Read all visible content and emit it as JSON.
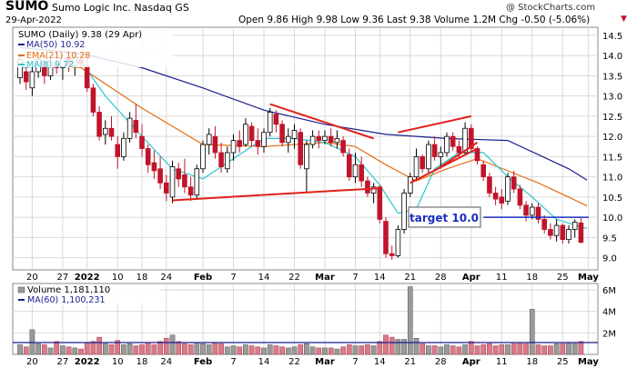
{
  "header": {
    "symbol": "SUMO",
    "company": "Sumo Logic Inc.  Nasdaq GS",
    "date": "29-Apr-2022",
    "copyright": "@ StockCharts.com",
    "quote": "Open 9.86  High 9.98  Low 9.36  Last 9.38  Volume 1.2M  Chg -0.50 (-5.06%)",
    "quote_chg_arrow": "▼"
  },
  "legend": {
    "price": "SUMO (Daily) 9.38 (29 Apr)",
    "ma50": "MA(50) 10.92",
    "ema21": "EMA(21) 10.28",
    "ma8": "MA(8) 9.72",
    "volume": "Volume 1,181,110",
    "ma60": "MA(60) 1,100,231"
  },
  "annotation": "target 10.0",
  "colors": {
    "up": "#000000",
    "down": "#c0142b",
    "ma50": "#1a1f8f",
    "ema21": "#e56e14",
    "ma8": "#2bc7cf",
    "trend": "#e0201a",
    "target": "#1a2fbf",
    "vol_up": "#9a9a9a",
    "vol_down": "#d97a86",
    "vol_ma": "#1a1f8f",
    "grid": "#d9d9d9"
  },
  "chart_data": [
    {
      "type": "candlestick",
      "ylim": [
        8.7,
        14.7
      ],
      "y_ticks": [
        "9.0",
        "9.5",
        "10.0",
        "10.5",
        "11.0",
        "11.5",
        "12.0",
        "12.5",
        "13.0",
        "13.5",
        "14.0",
        "14.5"
      ],
      "x_ticks": [
        "20",
        "27",
        "2022",
        "10",
        "18",
        "24",
        "Feb",
        "7",
        "14",
        "22",
        "Mar",
        "7",
        "14",
        "21",
        "28",
        "Apr",
        "11",
        "18",
        "25",
        "May"
      ],
      "candles": [
        {
          "d": "2021-12-16",
          "o": 13.45,
          "h": 14.05,
          "l": 13.3,
          "c": 13.9
        },
        {
          "d": "2021-12-17",
          "o": 13.6,
          "h": 13.75,
          "l": 13.15,
          "c": 13.35
        },
        {
          "d": "2021-12-20",
          "o": 13.2,
          "h": 13.75,
          "l": 13.0,
          "c": 13.6
        },
        {
          "d": "2021-12-21",
          "o": 13.6,
          "h": 14.0,
          "l": 13.45,
          "c": 13.9
        },
        {
          "d": "2021-12-22",
          "o": 13.85,
          "h": 14.0,
          "l": 13.3,
          "c": 13.5
        },
        {
          "d": "2021-12-23",
          "o": 13.5,
          "h": 13.95,
          "l": 13.4,
          "c": 13.85
        },
        {
          "d": "2021-12-27",
          "o": 13.8,
          "h": 14.1,
          "l": 13.55,
          "c": 13.7
        },
        {
          "d": "2021-12-28",
          "o": 13.7,
          "h": 14.05,
          "l": 13.4,
          "c": 13.95
        },
        {
          "d": "2021-12-29",
          "o": 13.95,
          "h": 14.0,
          "l": 13.6,
          "c": 13.75
        },
        {
          "d": "2021-12-30",
          "o": 13.75,
          "h": 14.05,
          "l": 13.5,
          "c": 13.95
        },
        {
          "d": "2021-12-31",
          "o": 13.9,
          "h": 14.05,
          "l": 13.7,
          "c": 13.8
        },
        {
          "d": "2022-01-03",
          "o": 13.75,
          "h": 14.0,
          "l": 13.1,
          "c": 13.2
        },
        {
          "d": "2022-01-04",
          "o": 13.2,
          "h": 13.3,
          "l": 12.5,
          "c": 12.6
        },
        {
          "d": "2022-01-05",
          "o": 12.6,
          "h": 12.75,
          "l": 11.9,
          "c": 12.0
        },
        {
          "d": "2022-01-06",
          "o": 12.05,
          "h": 12.4,
          "l": 11.8,
          "c": 12.2
        },
        {
          "d": "2022-01-07",
          "o": 12.2,
          "h": 12.5,
          "l": 11.9,
          "c": 12.0
        },
        {
          "d": "2022-01-10",
          "o": 11.8,
          "h": 12.0,
          "l": 11.2,
          "c": 11.5
        },
        {
          "d": "2022-01-11",
          "o": 11.5,
          "h": 12.1,
          "l": 11.4,
          "c": 11.95
        },
        {
          "d": "2022-01-12",
          "o": 11.95,
          "h": 12.6,
          "l": 11.85,
          "c": 12.45
        },
        {
          "d": "2022-01-13",
          "o": 12.4,
          "h": 12.8,
          "l": 11.95,
          "c": 12.1
        },
        {
          "d": "2022-01-14",
          "o": 12.0,
          "h": 12.3,
          "l": 11.5,
          "c": 11.7
        },
        {
          "d": "2022-01-18",
          "o": 11.7,
          "h": 11.8,
          "l": 11.1,
          "c": 11.3
        },
        {
          "d": "2022-01-19",
          "o": 11.35,
          "h": 11.65,
          "l": 10.95,
          "c": 11.15
        },
        {
          "d": "2022-01-20",
          "o": 11.2,
          "h": 11.5,
          "l": 10.7,
          "c": 10.85
        },
        {
          "d": "2022-01-21",
          "o": 10.85,
          "h": 11.05,
          "l": 10.4,
          "c": 10.6
        },
        {
          "d": "2022-01-24",
          "o": 10.5,
          "h": 11.4,
          "l": 10.35,
          "c": 11.25
        },
        {
          "d": "2022-01-25",
          "o": 11.2,
          "h": 11.35,
          "l": 10.75,
          "c": 10.95
        },
        {
          "d": "2022-01-26",
          "o": 11.05,
          "h": 11.45,
          "l": 10.6,
          "c": 10.75
        },
        {
          "d": "2022-01-27",
          "o": 10.75,
          "h": 11.0,
          "l": 10.4,
          "c": 10.55
        },
        {
          "d": "2022-01-28",
          "o": 10.55,
          "h": 11.3,
          "l": 10.45,
          "c": 11.2
        },
        {
          "d": "2022-01-31",
          "o": 11.2,
          "h": 11.9,
          "l": 11.1,
          "c": 11.8
        },
        {
          "d": "2022-02-01",
          "o": 11.8,
          "h": 12.2,
          "l": 11.55,
          "c": 12.05
        },
        {
          "d": "2022-02-02",
          "o": 12.0,
          "h": 12.25,
          "l": 11.45,
          "c": 11.6
        },
        {
          "d": "2022-02-03",
          "o": 11.6,
          "h": 11.85,
          "l": 11.1,
          "c": 11.25
        },
        {
          "d": "2022-02-04",
          "o": 11.2,
          "h": 11.75,
          "l": 11.1,
          "c": 11.6
        },
        {
          "d": "2022-02-07",
          "o": 11.6,
          "h": 12.05,
          "l": 11.4,
          "c": 11.9
        },
        {
          "d": "2022-02-08",
          "o": 11.9,
          "h": 12.15,
          "l": 11.6,
          "c": 11.75
        },
        {
          "d": "2022-02-09",
          "o": 11.8,
          "h": 12.45,
          "l": 11.75,
          "c": 12.3
        },
        {
          "d": "2022-02-10",
          "o": 12.25,
          "h": 12.35,
          "l": 11.75,
          "c": 11.9
        },
        {
          "d": "2022-02-11",
          "o": 11.9,
          "h": 12.2,
          "l": 11.55,
          "c": 11.75
        },
        {
          "d": "2022-02-14",
          "o": 11.75,
          "h": 12.2,
          "l": 11.6,
          "c": 12.1
        },
        {
          "d": "2022-02-15",
          "o": 12.1,
          "h": 12.7,
          "l": 12.0,
          "c": 12.6
        },
        {
          "d": "2022-02-16",
          "o": 12.55,
          "h": 12.65,
          "l": 12.1,
          "c": 12.3
        },
        {
          "d": "2022-02-17",
          "o": 12.3,
          "h": 12.4,
          "l": 11.75,
          "c": 11.85
        },
        {
          "d": "2022-02-18",
          "o": 11.85,
          "h": 12.2,
          "l": 11.6,
          "c": 12.0
        },
        {
          "d": "2022-02-22",
          "o": 11.95,
          "h": 12.3,
          "l": 11.7,
          "c": 12.15
        },
        {
          "d": "2022-02-23",
          "o": 12.1,
          "h": 12.2,
          "l": 11.2,
          "c": 11.3
        },
        {
          "d": "2022-02-24",
          "o": 11.2,
          "h": 11.9,
          "l": 10.6,
          "c": 11.8
        },
        {
          "d": "2022-02-25",
          "o": 11.8,
          "h": 12.15,
          "l": 11.7,
          "c": 12.0
        },
        {
          "d": "2022-02-28",
          "o": 12.0,
          "h": 12.15,
          "l": 11.7,
          "c": 11.9
        },
        {
          "d": "2022-03-01",
          "o": 11.9,
          "h": 12.15,
          "l": 11.8,
          "c": 12.0
        },
        {
          "d": "2022-03-02",
          "o": 12.0,
          "h": 12.2,
          "l": 11.75,
          "c": 11.85
        },
        {
          "d": "2022-03-03",
          "o": 11.85,
          "h": 12.15,
          "l": 11.7,
          "c": 11.95
        },
        {
          "d": "2022-03-04",
          "o": 11.9,
          "h": 12.0,
          "l": 11.5,
          "c": 11.6
        },
        {
          "d": "2022-03-07",
          "o": 11.55,
          "h": 11.7,
          "l": 10.9,
          "c": 11.0
        },
        {
          "d": "2022-03-08",
          "o": 11.0,
          "h": 11.6,
          "l": 10.85,
          "c": 11.3
        },
        {
          "d": "2022-03-09",
          "o": 11.3,
          "h": 11.5,
          "l": 10.75,
          "c": 10.9
        },
        {
          "d": "2022-03-10",
          "o": 10.9,
          "h": 11.0,
          "l": 10.5,
          "c": 10.6
        },
        {
          "d": "2022-03-11",
          "o": 10.6,
          "h": 10.85,
          "l": 10.35,
          "c": 10.75
        },
        {
          "d": "2022-03-14",
          "o": 10.75,
          "h": 10.8,
          "l": 9.85,
          "c": 9.95
        },
        {
          "d": "2022-03-15",
          "o": 9.9,
          "h": 10.0,
          "l": 9.0,
          "c": 9.1
        },
        {
          "d": "2022-03-16",
          "o": 9.1,
          "h": 9.3,
          "l": 8.95,
          "c": 9.05
        },
        {
          "d": "2022-03-17",
          "o": 9.05,
          "h": 9.8,
          "l": 9.0,
          "c": 9.7
        },
        {
          "d": "2022-03-18",
          "o": 9.7,
          "h": 10.7,
          "l": 9.6,
          "c": 10.6
        },
        {
          "d": "2022-03-21",
          "o": 10.6,
          "h": 11.1,
          "l": 10.5,
          "c": 11.0
        },
        {
          "d": "2022-03-22",
          "o": 11.0,
          "h": 11.7,
          "l": 10.9,
          "c": 11.5
        },
        {
          "d": "2022-03-23",
          "o": 11.5,
          "h": 11.55,
          "l": 11.1,
          "c": 11.2
        },
        {
          "d": "2022-03-24",
          "o": 11.2,
          "h": 11.9,
          "l": 11.1,
          "c": 11.8
        },
        {
          "d": "2022-03-25",
          "o": 11.8,
          "h": 12.0,
          "l": 11.4,
          "c": 11.5
        },
        {
          "d": "2022-03-28",
          "o": 11.5,
          "h": 11.75,
          "l": 11.2,
          "c": 11.6
        },
        {
          "d": "2022-03-29",
          "o": 11.6,
          "h": 12.1,
          "l": 11.5,
          "c": 12.0
        },
        {
          "d": "2022-03-30",
          "o": 12.0,
          "h": 12.1,
          "l": 11.65,
          "c": 11.75
        },
        {
          "d": "2022-03-31",
          "o": 11.75,
          "h": 11.9,
          "l": 11.45,
          "c": 11.6
        },
        {
          "d": "2022-04-01",
          "o": 11.6,
          "h": 12.35,
          "l": 11.55,
          "c": 12.2
        },
        {
          "d": "2022-04-04",
          "o": 12.2,
          "h": 12.3,
          "l": 11.6,
          "c": 11.7
        },
        {
          "d": "2022-04-05",
          "o": 11.7,
          "h": 11.75,
          "l": 11.3,
          "c": 11.4
        },
        {
          "d": "2022-04-06",
          "o": 11.3,
          "h": 11.4,
          "l": 10.9,
          "c": 11.0
        },
        {
          "d": "2022-04-07",
          "o": 11.0,
          "h": 11.1,
          "l": 10.5,
          "c": 10.6
        },
        {
          "d": "2022-04-08",
          "o": 10.6,
          "h": 10.75,
          "l": 10.3,
          "c": 10.45
        },
        {
          "d": "2022-04-11",
          "o": 10.5,
          "h": 10.7,
          "l": 10.2,
          "c": 10.35
        },
        {
          "d": "2022-04-12",
          "o": 10.4,
          "h": 11.1,
          "l": 10.3,
          "c": 11.0
        },
        {
          "d": "2022-04-13",
          "o": 11.0,
          "h": 11.15,
          "l": 10.6,
          "c": 10.7
        },
        {
          "d": "2022-04-14",
          "o": 10.7,
          "h": 10.8,
          "l": 10.2,
          "c": 10.3
        },
        {
          "d": "2022-04-18",
          "o": 10.3,
          "h": 10.4,
          "l": 9.9,
          "c": 10.05
        },
        {
          "d": "2022-04-19",
          "o": 10.05,
          "h": 10.35,
          "l": 9.95,
          "c": 10.25
        },
        {
          "d": "2022-04-20",
          "o": 10.25,
          "h": 10.35,
          "l": 9.85,
          "c": 9.95
        },
        {
          "d": "2022-04-21",
          "o": 9.95,
          "h": 10.05,
          "l": 9.6,
          "c": 9.7
        },
        {
          "d": "2022-04-22",
          "o": 9.7,
          "h": 9.85,
          "l": 9.45,
          "c": 9.55
        },
        {
          "d": "2022-04-25",
          "o": 9.55,
          "h": 9.95,
          "l": 9.4,
          "c": 9.8
        },
        {
          "d": "2022-04-26",
          "o": 9.8,
          "h": 9.85,
          "l": 9.35,
          "c": 9.45
        },
        {
          "d": "2022-04-27",
          "o": 9.45,
          "h": 9.8,
          "l": 9.35,
          "c": 9.7
        },
        {
          "d": "2022-04-28",
          "o": 9.7,
          "h": 9.95,
          "l": 9.5,
          "c": 9.88
        },
        {
          "d": "2022-04-29",
          "o": 9.86,
          "h": 9.98,
          "l": 9.36,
          "c": 9.38
        }
      ],
      "ma50_anchors": [
        [
          0,
          14.2
        ],
        [
          10,
          14.05
        ],
        [
          20,
          13.7
        ],
        [
          30,
          13.2
        ],
        [
          40,
          12.65
        ],
        [
          50,
          12.3
        ],
        [
          60,
          12.05
        ],
        [
          70,
          11.95
        ],
        [
          80,
          11.9
        ],
        [
          90,
          11.2
        ],
        [
          93,
          10.92
        ]
      ],
      "ema21_anchors": [
        [
          0,
          13.85
        ],
        [
          10,
          13.7
        ],
        [
          20,
          12.7
        ],
        [
          30,
          11.8
        ],
        [
          40,
          11.75
        ],
        [
          50,
          11.85
        ],
        [
          55,
          11.75
        ],
        [
          60,
          11.3
        ],
        [
          65,
          10.9
        ],
        [
          70,
          11.2
        ],
        [
          75,
          11.45
        ],
        [
          80,
          11.15
        ],
        [
          85,
          10.85
        ],
        [
          90,
          10.5
        ],
        [
          93,
          10.28
        ]
      ],
      "ma8_anchors": [
        [
          0,
          13.7
        ],
        [
          5,
          13.75
        ],
        [
          10,
          13.85
        ],
        [
          14,
          13.0
        ],
        [
          20,
          12.0
        ],
        [
          25,
          11.2
        ],
        [
          30,
          10.95
        ],
        [
          35,
          11.45
        ],
        [
          40,
          11.95
        ],
        [
          45,
          11.95
        ],
        [
          50,
          11.85
        ],
        [
          55,
          11.5
        ],
        [
          59,
          10.8
        ],
        [
          62,
          10.1
        ],
        [
          65,
          10.2
        ],
        [
          68,
          11.2
        ],
        [
          72,
          11.6
        ],
        [
          76,
          11.6
        ],
        [
          80,
          11.0
        ],
        [
          84,
          10.5
        ],
        [
          88,
          9.95
        ],
        [
          93,
          9.72
        ]
      ],
      "trendlines": [
        {
          "y1_date": "2022-01-24",
          "y1": 10.42,
          "y2_date": "2022-03-14",
          "y2": 10.72
        },
        {
          "y1_date": "2022-02-15",
          "y1": 12.8,
          "y2_date": "2022-03-11",
          "y2": 11.95
        },
        {
          "y1_date": "2022-03-17",
          "y1": 12.1,
          "y2_date": "2022-04-04",
          "y2": 12.5
        },
        {
          "y1_date": "2022-03-21",
          "y1": 10.85,
          "y2_date": "2022-04-05",
          "y2": 11.7
        }
      ],
      "target_line": {
        "from_date": "2022-04-06",
        "y": 10.0
      },
      "extra_trend_up": {
        "y1_date": "2022-03-25",
        "y1": 11.15,
        "y2_date": "2022-04-05",
        "y2": 11.85
      }
    },
    {
      "type": "bar",
      "title": "Volume",
      "ylim": [
        0,
        6.6
      ],
      "y_ticks": [
        "2M",
        "4M",
        "6M"
      ],
      "volumes_m": [
        0.9,
        0.7,
        2.3,
        1.0,
        0.9,
        0.6,
        1.2,
        0.8,
        0.7,
        0.6,
        0.5,
        1.1,
        1.2,
        1.6,
        1.0,
        0.9,
        1.3,
        0.9,
        1.0,
        0.8,
        0.9,
        1.1,
        0.9,
        1.2,
        1.5,
        1.8,
        1.2,
        1.0,
        0.9,
        1.1,
        1.0,
        0.9,
        1.1,
        1.0,
        0.7,
        0.8,
        0.7,
        0.9,
        0.8,
        0.7,
        0.6,
        0.9,
        0.8,
        0.7,
        0.6,
        0.7,
        0.9,
        1.0,
        0.7,
        0.6,
        0.6,
        0.6,
        0.5,
        0.7,
        0.9,
        0.8,
        0.8,
        0.9,
        0.8,
        1.2,
        1.8,
        1.6,
        1.4,
        1.4,
        6.3,
        1.5,
        1.0,
        0.8,
        0.8,
        0.7,
        0.9,
        0.8,
        0.7,
        0.9,
        1.2,
        0.8,
        0.9,
        1.0,
        0.8,
        0.9,
        0.9,
        1.0,
        1.1,
        1.0,
        4.2,
        0.9,
        0.8,
        0.8,
        1.0,
        1.0,
        1.1,
        1.0,
        1.2
      ],
      "ma60_m": 1.1
    }
  ]
}
